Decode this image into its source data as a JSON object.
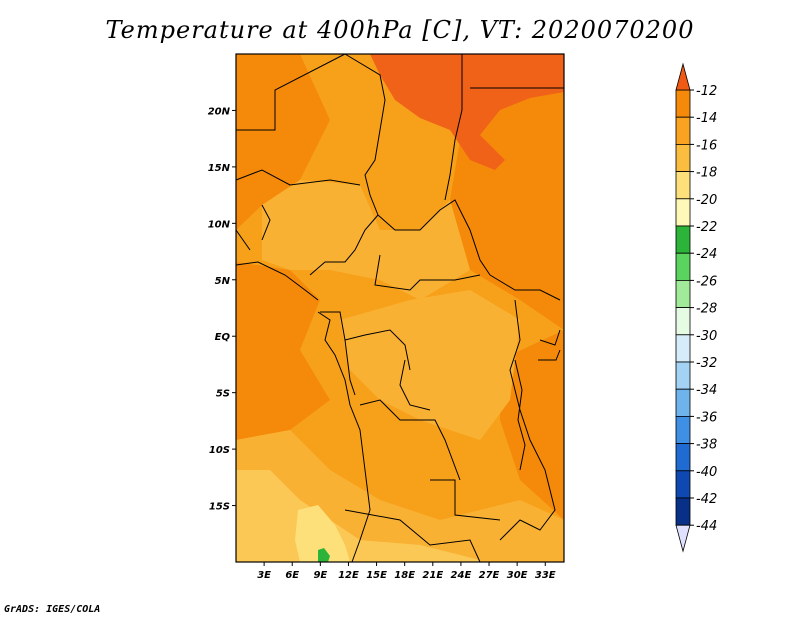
{
  "title": "Temperature at 400hPa [C], VT: 2020070200",
  "credit": "GrADS: IGES/COLA",
  "map": {
    "lat_ticks": [
      "20N",
      "15N",
      "10N",
      "5N",
      "EQ",
      "5S",
      "10S",
      "15S"
    ],
    "lon_ticks": [
      "3E",
      "6E",
      "9E",
      "12E",
      "15E",
      "18E",
      "21E",
      "24E",
      "27E",
      "30E",
      "33E"
    ],
    "lat_range": [
      -20,
      25
    ],
    "lon_range": [
      0,
      35
    ]
  },
  "colorbar": {
    "labels": [
      "-12",
      "-14",
      "-16",
      "-18",
      "-20",
      "-22",
      "-24",
      "-26",
      "-28",
      "-30",
      "-32",
      "-34",
      "-36",
      "-38",
      "-40",
      "-42",
      "-44"
    ],
    "colors": [
      "#f05a14",
      "#f58a0a",
      "#f9a321",
      "#fbbd3f",
      "#fde07a",
      "#fff8b8",
      "#2bb33a",
      "#5bd35f",
      "#a0ea9a",
      "#e6fbe4",
      "#d6ecfb",
      "#a3d2f4",
      "#6fb3ec",
      "#3f8fe4",
      "#1f6bd2",
      "#0e48b0",
      "#083086",
      "#000070",
      "#e0e0ff"
    ],
    "top_color": "#f05a14",
    "bottom_color": "#e0e0ff"
  },
  "colors": {
    "base": "#f7a11a",
    "warm": "#f58a0a",
    "hot": "#f06218",
    "cool": "#f9b134",
    "pale": "#fbc855",
    "lighter": "#fde07a",
    "green": "#2bb33a",
    "border": "#000000"
  }
}
